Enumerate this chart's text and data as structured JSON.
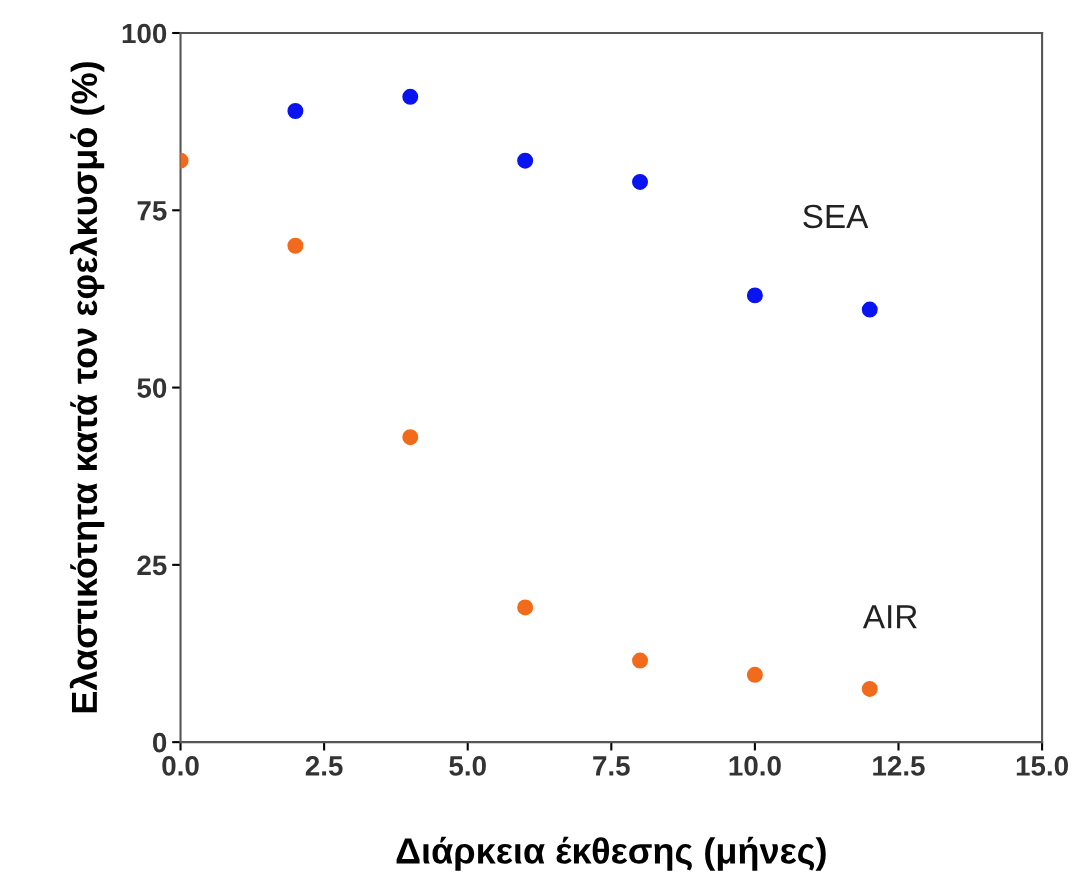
{
  "chart_data": {
    "type": "scatter",
    "xlabel": "Διάρκεια έκθεσης (μήνες)",
    "ylabel": "Ελαστικότητα κατά τον εφελκυσμό (%)",
    "x": [
      0,
      2,
      4,
      6,
      8,
      10,
      12
    ],
    "series": [
      {
        "name": "SEA",
        "color": "#0a14f0",
        "values": [
          null,
          89,
          91,
          82,
          79,
          63,
          61
        ]
      },
      {
        "name": "AIR",
        "color": "#f26a1b",
        "values": [
          82,
          70,
          43,
          19,
          11.5,
          9.5,
          7.5
        ]
      }
    ],
    "xlim": [
      0,
      15
    ],
    "ylim": [
      0,
      100
    ],
    "xticks": [
      {
        "value": 0,
        "label": "0.0"
      },
      {
        "value": 2.5,
        "label": "2.5"
      },
      {
        "value": 5,
        "label": "5.0"
      },
      {
        "value": 7.5,
        "label": "7.5"
      },
      {
        "value": 10,
        "label": "10.0"
      },
      {
        "value": 12.5,
        "label": "12.5"
      },
      {
        "value": 15,
        "label": "15.0"
      }
    ],
    "yticks": [
      0,
      25,
      50,
      75,
      100
    ],
    "marker": "circle",
    "grid": false,
    "legend": false
  }
}
